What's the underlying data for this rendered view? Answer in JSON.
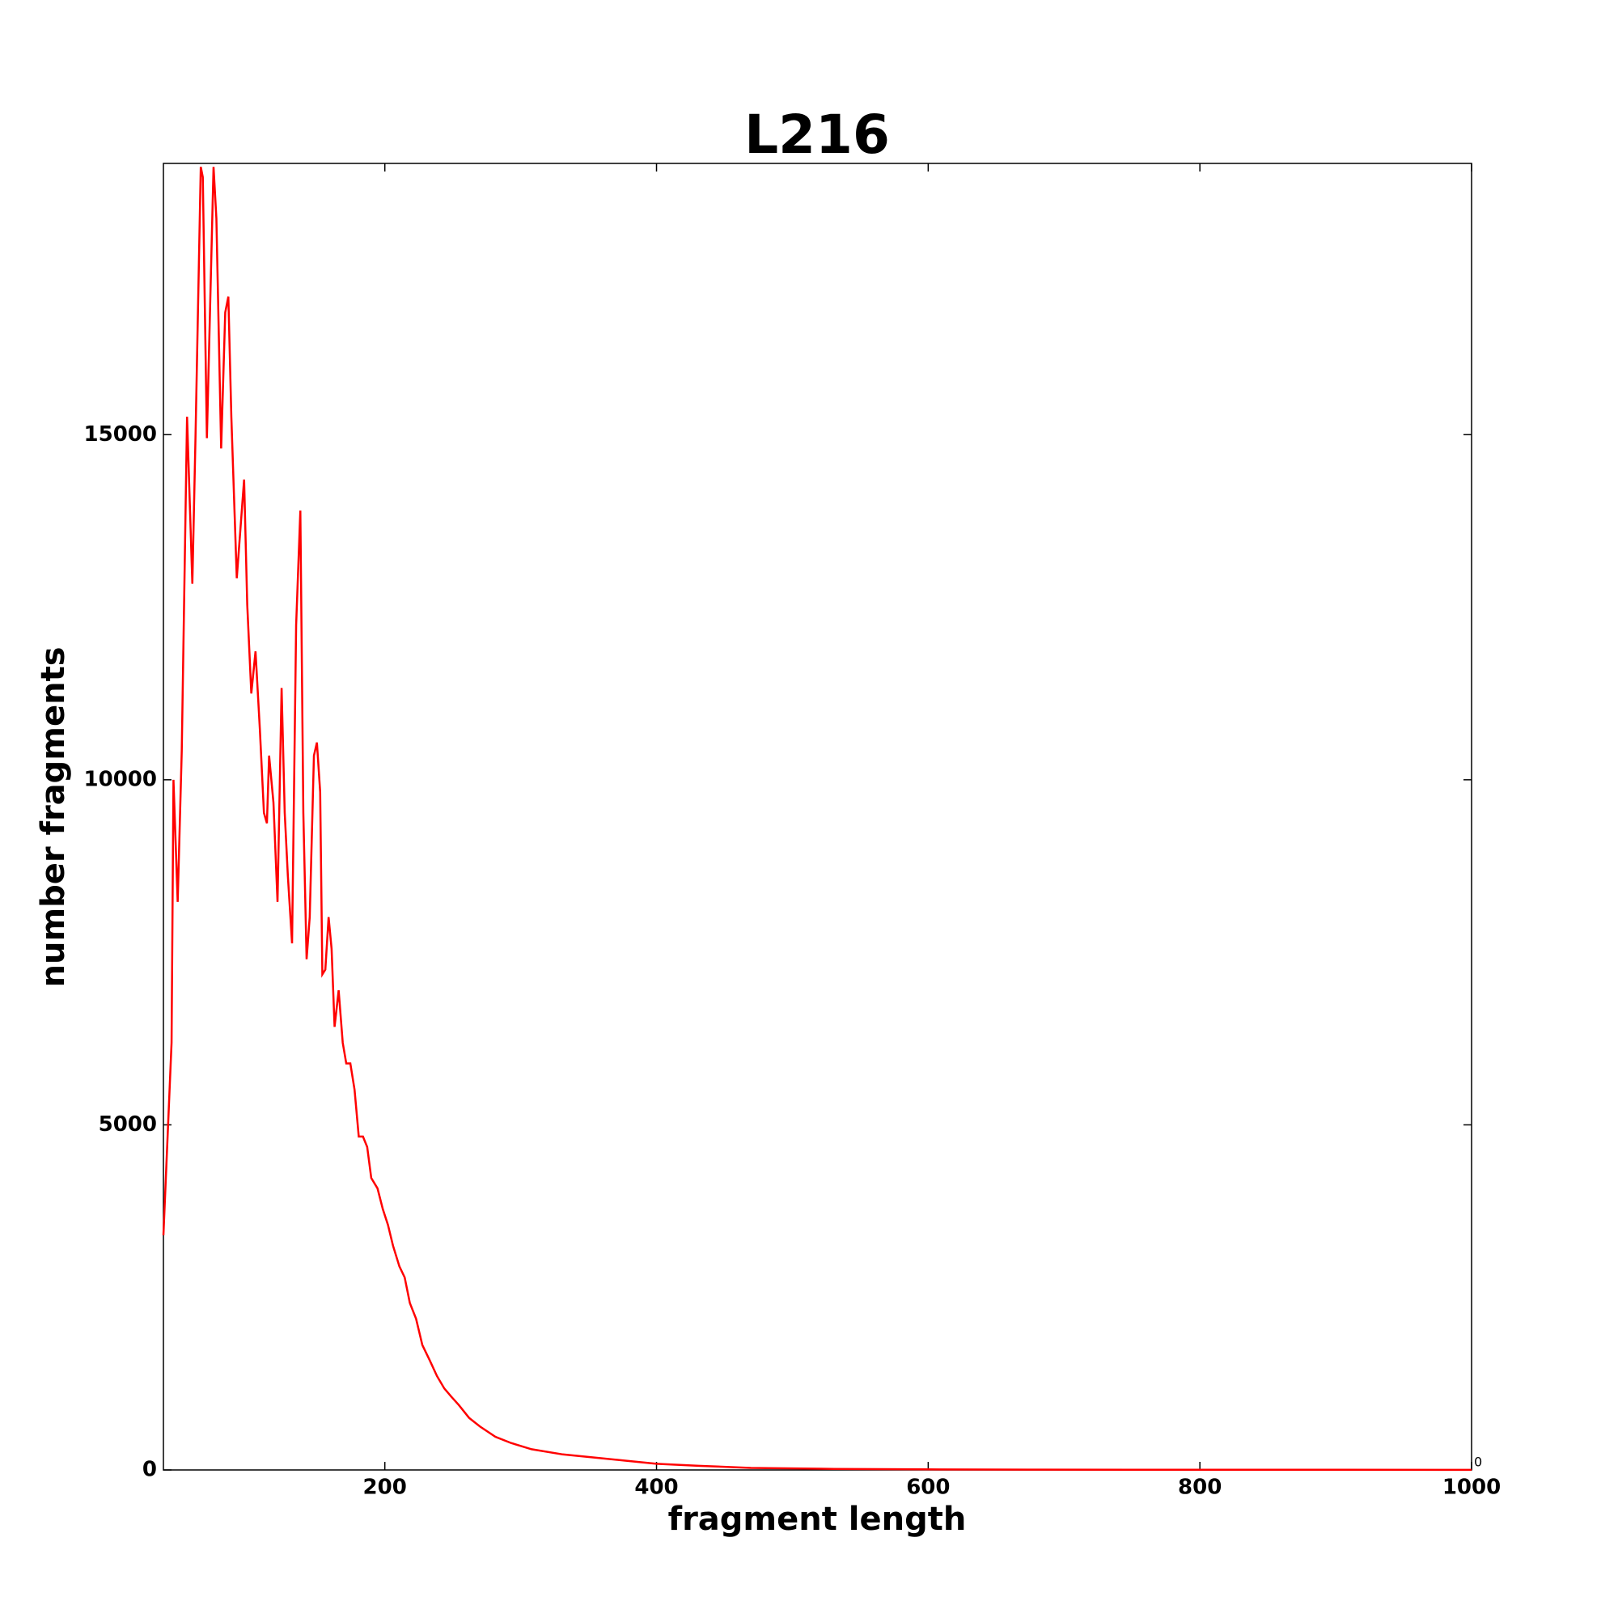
{
  "chart_data": {
    "type": "line",
    "title": "L216",
    "xlabel": "fragment length",
    "ylabel": "number fragments",
    "corner_label": "0",
    "x": [
      37,
      43,
      44.4,
      47.5,
      50.5,
      54.4,
      58.3,
      60.6,
      64.5,
      66,
      69,
      73.9,
      76,
      79.5,
      82.5,
      84.8,
      87,
      91,
      93,
      96.4,
      98.7,
      101.7,
      104.8,
      108,
      111,
      113.2,
      114.8,
      118,
      121,
      124,
      126.3,
      128.6,
      131.7,
      134.7,
      137.8,
      140,
      142.4,
      144.7,
      147.8,
      150,
      152.4,
      154,
      156.2,
      158.6,
      160.8,
      163,
      166,
      169,
      171.6,
      174.6,
      177.7,
      180.8,
      183.9,
      187,
      190,
      194.6,
      198.5,
      202.3,
      206,
      210.7,
      214.6,
      218.4,
      223,
      227.6,
      233,
      238.4,
      243.8,
      249,
      254.5,
      262,
      270,
      281.4,
      293,
      308,
      331,
      354,
      377,
      400,
      431,
      469.5,
      531,
      608,
      684,
      1000
    ],
    "series": [
      {
        "name": "L216",
        "color": "#ff0000",
        "values": [
          3400,
          6190,
          10000,
          8230,
          10420,
          15260,
          12840,
          14950,
          18880,
          18730,
          14950,
          18880,
          18130,
          14800,
          16770,
          17000,
          15260,
          12920,
          13450,
          14350,
          12540,
          11250,
          11860,
          10730,
          9520,
          9370,
          10350,
          9670,
          8230,
          11330,
          9520,
          8610,
          7630,
          12240,
          13900,
          9520,
          7400,
          8010,
          10350,
          10540,
          9820,
          7180,
          7250,
          8010,
          7550,
          6420,
          6950,
          6190,
          5890,
          5890,
          5510,
          4830,
          4830,
          4680,
          4230,
          4080,
          3780,
          3550,
          3250,
          2950,
          2790,
          2420,
          2190,
          1810,
          1590,
          1360,
          1180,
          1060,
          940,
          755,
          630,
          480,
          390,
          300,
          225,
          180,
          135,
          90,
          60,
          30,
          15,
          8,
          4,
          2
        ]
      }
    ],
    "xlim": [
      37,
      1000
    ],
    "ylim": [
      0,
      18930
    ],
    "xticks": [
      200,
      400,
      600,
      800,
      1000
    ],
    "yticks": [
      0,
      5000,
      10000,
      15000
    ]
  }
}
